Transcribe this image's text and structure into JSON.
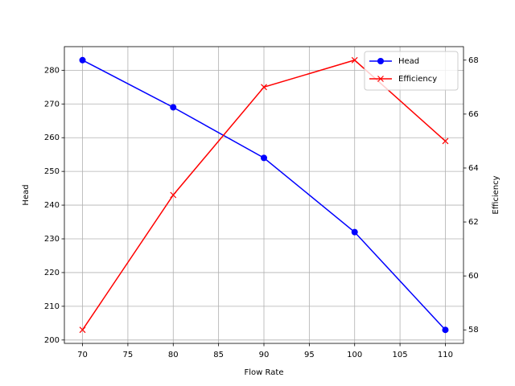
{
  "chart_data": {
    "type": "line",
    "xlabel": "Flow Rate",
    "ylabel": "Head",
    "y2label": "Efficiency",
    "x": [
      70,
      80,
      90,
      100,
      110
    ],
    "series": [
      {
        "name": "Head",
        "color": "#0000ff",
        "marker": "o",
        "values": [
          283,
          269,
          254,
          232,
          203
        ]
      },
      {
        "name": "Efficiency",
        "color": "#ff0000",
        "marker": "x",
        "axis": "y2",
        "values": [
          58,
          63,
          67,
          68,
          65
        ]
      }
    ],
    "xlim": [
      68,
      112
    ],
    "xticks": [
      70,
      75,
      80,
      85,
      90,
      95,
      100,
      105,
      110
    ],
    "ylim": [
      199,
      287
    ],
    "yticks": [
      200,
      210,
      220,
      230,
      240,
      250,
      260,
      270,
      280
    ],
    "y2lim": [
      57.5,
      68.5
    ],
    "y2ticks": [
      58,
      60,
      62,
      64,
      66,
      68
    ],
    "grid": true,
    "legend": "upper right"
  }
}
